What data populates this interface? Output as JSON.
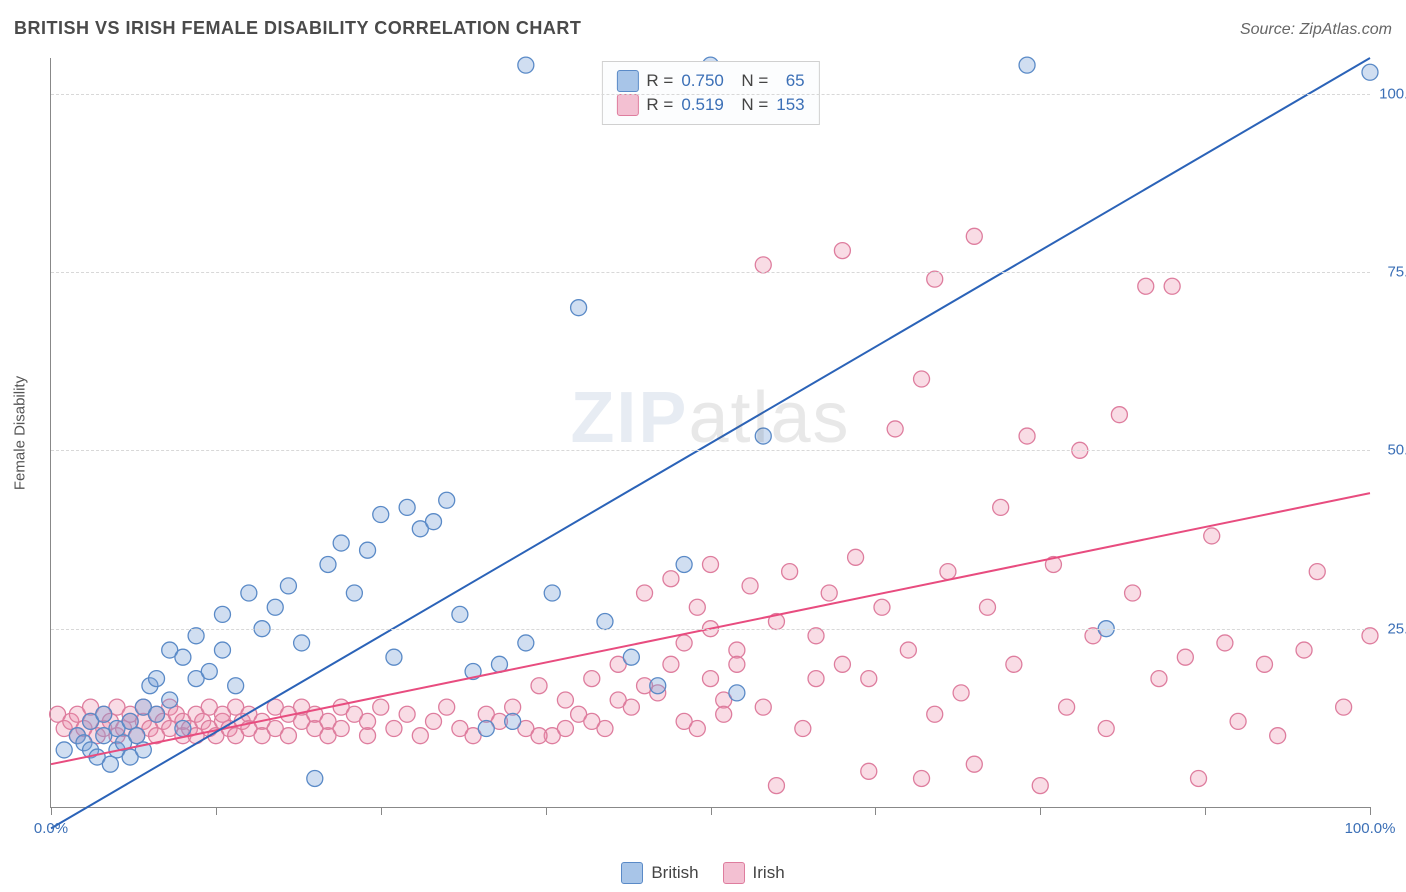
{
  "title": "BRITISH VS IRISH FEMALE DISABILITY CORRELATION CHART",
  "source": "Source: ZipAtlas.com",
  "y_axis_label": "Female Disability",
  "watermark_bold": "ZIP",
  "watermark_light": "atlas",
  "chart": {
    "type": "scatter",
    "xlim": [
      0,
      100
    ],
    "ylim": [
      0,
      105
    ],
    "y_ticks": [
      25,
      50,
      75,
      100
    ],
    "y_tick_labels": [
      "25.0%",
      "50.0%",
      "75.0%",
      "100.0%"
    ],
    "x_ticks": [
      0,
      12.5,
      25,
      37.5,
      50,
      62.5,
      75,
      87.5,
      100
    ],
    "x_tick_labels_shown": {
      "0": "0.0%",
      "100": "100.0%"
    },
    "grid_color": "#d8d8d8",
    "background_color": "#ffffff",
    "axis_color": "#888888",
    "tick_label_color": "#3b6fb6",
    "axis_label_fontsize": 15,
    "tick_label_fontsize": 15,
    "marker_radius": 8,
    "marker_stroke_width": 1.3,
    "trend_line_width": 2,
    "series": {
      "british": {
        "label": "British",
        "fill": "rgba(120,160,215,0.35)",
        "stroke": "#5a8ac7",
        "swatch_fill": "#a8c5e8",
        "swatch_stroke": "#5a8ac7",
        "trend_color": "#2b63b8",
        "trend": {
          "x1": 0,
          "y1": -3,
          "x2": 100,
          "y2": 105
        },
        "R": "0.750",
        "N": "65",
        "points": [
          [
            1,
            8
          ],
          [
            2,
            10
          ],
          [
            2.5,
            9
          ],
          [
            3,
            8
          ],
          [
            3,
            12
          ],
          [
            3.5,
            7
          ],
          [
            4,
            10
          ],
          [
            4,
            13
          ],
          [
            4.5,
            6
          ],
          [
            5,
            8
          ],
          [
            5,
            11
          ],
          [
            5.5,
            9
          ],
          [
            6,
            12
          ],
          [
            6,
            7
          ],
          [
            6.5,
            10
          ],
          [
            7,
            14
          ],
          [
            7,
            8
          ],
          [
            7.5,
            17
          ],
          [
            8,
            13
          ],
          [
            8,
            18
          ],
          [
            9,
            22
          ],
          [
            9,
            15
          ],
          [
            10,
            11
          ],
          [
            10,
            21
          ],
          [
            11,
            24
          ],
          [
            11,
            18
          ],
          [
            12,
            19
          ],
          [
            13,
            27
          ],
          [
            13,
            22
          ],
          [
            14,
            17
          ],
          [
            15,
            30
          ],
          [
            16,
            25
          ],
          [
            17,
            28
          ],
          [
            18,
            31
          ],
          [
            19,
            23
          ],
          [
            20,
            4
          ],
          [
            21,
            34
          ],
          [
            22,
            37
          ],
          [
            23,
            30
          ],
          [
            24,
            36
          ],
          [
            25,
            41
          ],
          [
            26,
            21
          ],
          [
            27,
            42
          ],
          [
            28,
            39
          ],
          [
            29,
            40
          ],
          [
            30,
            43
          ],
          [
            31,
            27
          ],
          [
            32,
            19
          ],
          [
            33,
            11
          ],
          [
            34,
            20
          ],
          [
            35,
            12
          ],
          [
            36,
            104
          ],
          [
            38,
            30
          ],
          [
            40,
            70
          ],
          [
            42,
            26
          ],
          [
            44,
            21
          ],
          [
            46,
            17
          ],
          [
            48,
            34
          ],
          [
            50,
            104
          ],
          [
            52,
            16
          ],
          [
            54,
            52
          ],
          [
            74,
            104
          ],
          [
            80,
            25
          ],
          [
            100,
            103
          ],
          [
            36,
            23
          ]
        ]
      },
      "irish": {
        "label": "Irish",
        "fill": "rgba(235,140,170,0.30)",
        "stroke": "#de7d9e",
        "swatch_fill": "#f3c0d2",
        "swatch_stroke": "#de7d9e",
        "trend_color": "#e84c7f",
        "trend": {
          "x1": 0,
          "y1": 6,
          "x2": 100,
          "y2": 44
        },
        "R": "0.519",
        "N": "153",
        "points": [
          [
            0.5,
            13
          ],
          [
            1,
            11
          ],
          [
            1.5,
            12
          ],
          [
            2,
            10
          ],
          [
            2,
            13
          ],
          [
            2.5,
            11
          ],
          [
            3,
            12
          ],
          [
            3,
            14
          ],
          [
            3.5,
            10
          ],
          [
            4,
            11
          ],
          [
            4,
            13
          ],
          [
            4.5,
            12
          ],
          [
            5,
            10
          ],
          [
            5,
            14
          ],
          [
            5.5,
            11
          ],
          [
            6,
            12
          ],
          [
            6,
            13
          ],
          [
            6.5,
            10
          ],
          [
            7,
            12
          ],
          [
            7,
            14
          ],
          [
            7.5,
            11
          ],
          [
            8,
            13
          ],
          [
            8,
            10
          ],
          [
            8.5,
            12
          ],
          [
            9,
            11
          ],
          [
            9,
            14
          ],
          [
            9.5,
            13
          ],
          [
            10,
            10
          ],
          [
            10,
            12
          ],
          [
            10.5,
            11
          ],
          [
            11,
            13
          ],
          [
            11,
            10
          ],
          [
            11.5,
            12
          ],
          [
            12,
            14
          ],
          [
            12,
            11
          ],
          [
            12.5,
            10
          ],
          [
            13,
            12
          ],
          [
            13,
            13
          ],
          [
            13.5,
            11
          ],
          [
            14,
            14
          ],
          [
            14,
            10
          ],
          [
            14.5,
            12
          ],
          [
            15,
            11
          ],
          [
            15,
            13
          ],
          [
            16,
            12
          ],
          [
            16,
            10
          ],
          [
            17,
            14
          ],
          [
            17,
            11
          ],
          [
            18,
            13
          ],
          [
            18,
            10
          ],
          [
            19,
            12
          ],
          [
            19,
            14
          ],
          [
            20,
            11
          ],
          [
            20,
            13
          ],
          [
            21,
            10
          ],
          [
            21,
            12
          ],
          [
            22,
            14
          ],
          [
            22,
            11
          ],
          [
            23,
            13
          ],
          [
            24,
            10
          ],
          [
            24,
            12
          ],
          [
            25,
            14
          ],
          [
            26,
            11
          ],
          [
            27,
            13
          ],
          [
            28,
            10
          ],
          [
            29,
            12
          ],
          [
            30,
            14
          ],
          [
            31,
            11
          ],
          [
            32,
            10
          ],
          [
            33,
            13
          ],
          [
            34,
            12
          ],
          [
            35,
            14
          ],
          [
            36,
            11
          ],
          [
            37,
            17
          ],
          [
            38,
            10
          ],
          [
            39,
            15
          ],
          [
            40,
            13
          ],
          [
            41,
            18
          ],
          [
            42,
            11
          ],
          [
            43,
            20
          ],
          [
            44,
            14
          ],
          [
            45,
            30
          ],
          [
            46,
            16
          ],
          [
            47,
            32
          ],
          [
            48,
            12
          ],
          [
            49,
            28
          ],
          [
            50,
            18
          ],
          [
            50,
            34
          ],
          [
            51,
            15
          ],
          [
            52,
            22
          ],
          [
            53,
            31
          ],
          [
            54,
            14
          ],
          [
            55,
            26
          ],
          [
            56,
            33
          ],
          [
            57,
            11
          ],
          [
            58,
            24
          ],
          [
            59,
            30
          ],
          [
            60,
            78
          ],
          [
            60,
            20
          ],
          [
            61,
            35
          ],
          [
            62,
            18
          ],
          [
            63,
            28
          ],
          [
            64,
            53
          ],
          [
            65,
            22
          ],
          [
            66,
            60
          ],
          [
            67,
            13
          ],
          [
            67,
            74
          ],
          [
            68,
            33
          ],
          [
            69,
            16
          ],
          [
            70,
            80
          ],
          [
            71,
            28
          ],
          [
            72,
            42
          ],
          [
            73,
            20
          ],
          [
            74,
            52
          ],
          [
            75,
            3
          ],
          [
            76,
            34
          ],
          [
            77,
            14
          ],
          [
            78,
            50
          ],
          [
            79,
            24
          ],
          [
            80,
            11
          ],
          [
            81,
            55
          ],
          [
            82,
            30
          ],
          [
            83,
            73
          ],
          [
            84,
            18
          ],
          [
            85,
            73
          ],
          [
            86,
            21
          ],
          [
            87,
            4
          ],
          [
            88,
            38
          ],
          [
            89,
            23
          ],
          [
            90,
            12
          ],
          [
            92,
            20
          ],
          [
            93,
            10
          ],
          [
            95,
            22
          ],
          [
            96,
            33
          ],
          [
            98,
            14
          ],
          [
            100,
            24
          ],
          [
            62,
            5
          ],
          [
            66,
            4
          ],
          [
            70,
            6
          ],
          [
            55,
            3
          ],
          [
            48,
            23
          ],
          [
            50,
            25
          ],
          [
            52,
            20
          ],
          [
            54,
            76
          ],
          [
            58,
            18
          ],
          [
            47,
            20
          ],
          [
            49,
            11
          ],
          [
            51,
            13
          ],
          [
            45,
            17
          ],
          [
            43,
            15
          ],
          [
            41,
            12
          ],
          [
            39,
            11
          ],
          [
            37,
            10
          ]
        ]
      }
    }
  },
  "legend_bottom": [
    {
      "key": "british",
      "label": "British"
    },
    {
      "key": "irish",
      "label": "Irish"
    }
  ]
}
